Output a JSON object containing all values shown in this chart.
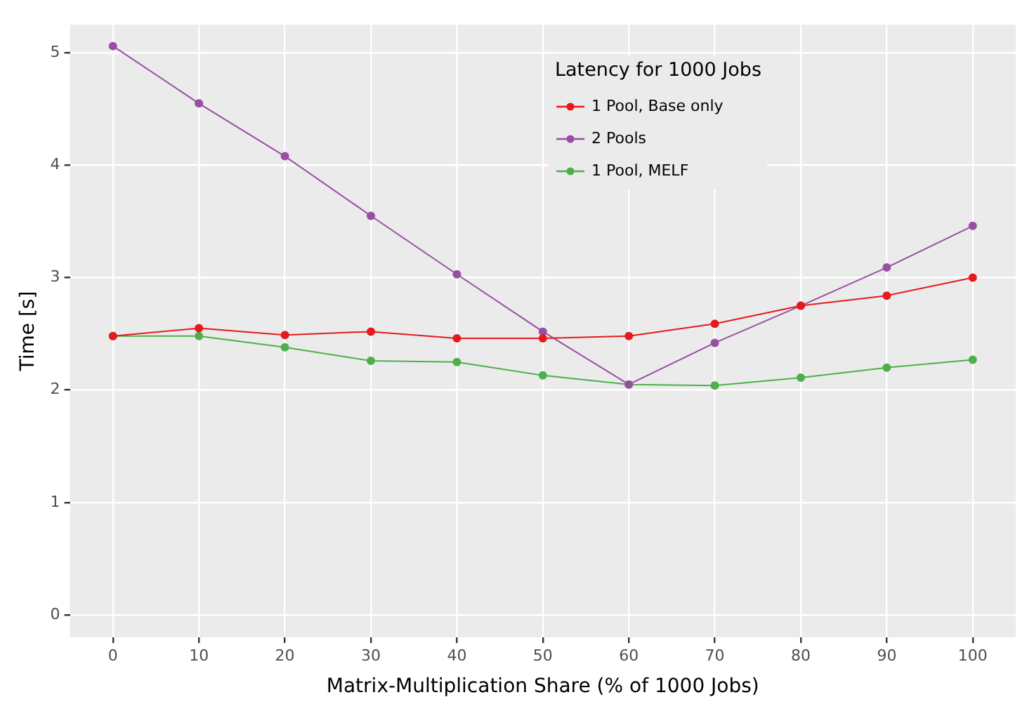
{
  "chart_data": {
    "type": "line",
    "xlabel": "Matrix-Multiplication Share (% of 1000 Jobs)",
    "ylabel": "Time [s]",
    "legend_title": "Latency for 1000 Jobs",
    "legend": "top",
    "grid": true,
    "marker": "circle",
    "line_style": "solid",
    "x": [
      0,
      10,
      20,
      30,
      40,
      50,
      60,
      70,
      80,
      90,
      100
    ],
    "xlim": [
      -5,
      105
    ],
    "xticks": [
      0,
      10,
      20,
      30,
      40,
      50,
      60,
      70,
      80,
      90,
      100
    ],
    "ylim": [
      -0.2,
      5.25
    ],
    "yticks": [
      0,
      1,
      2,
      3,
      4,
      5
    ],
    "series": [
      {
        "name": "1 Pool, Base only",
        "color": "#e41a1c",
        "values": [
          2.48,
          2.55,
          2.49,
          2.52,
          2.46,
          2.46,
          2.48,
          2.59,
          2.75,
          2.84,
          3.0
        ]
      },
      {
        "name": "2 Pools",
        "color": "#984ea3",
        "values": [
          5.06,
          4.55,
          4.08,
          3.55,
          3.03,
          2.52,
          2.05,
          2.42,
          2.75,
          3.09,
          3.46
        ]
      },
      {
        "name": "1 Pool, MELF",
        "color": "#4daf4a",
        "values": [
          2.48,
          2.48,
          2.38,
          2.26,
          2.25,
          2.13,
          2.05,
          2.04,
          2.11,
          2.2,
          2.27
        ]
      }
    ]
  }
}
